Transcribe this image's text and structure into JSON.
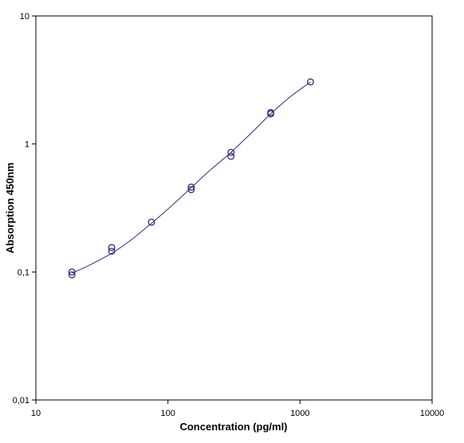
{
  "chart_data": {
    "type": "scatter",
    "xlabel": "Concentration (pg/ml)",
    "ylabel": "Absorption 450nm",
    "x_scale": "log",
    "y_scale": "log",
    "xlim": [
      10,
      10000
    ],
    "ylim": [
      0.01,
      10
    ],
    "grid": false,
    "x_ticks": [
      10,
      100,
      1000,
      10000
    ],
    "x_tick_labels": [
      "10",
      "100",
      "1000",
      "10000"
    ],
    "y_ticks": [
      0.01,
      0.1,
      1,
      10
    ],
    "y_tick_labels": [
      "0,01",
      "0,1",
      "1",
      "10"
    ],
    "series": [
      {
        "marker": "circle",
        "color": "#2b2f7a",
        "points": [
          {
            "x": 18.75,
            "y": 0.095
          },
          {
            "x": 18.75,
            "y": 0.1
          },
          {
            "x": 37.5,
            "y": 0.145
          },
          {
            "x": 37.5,
            "y": 0.155
          },
          {
            "x": 75,
            "y": 0.245
          },
          {
            "x": 150,
            "y": 0.44
          },
          {
            "x": 150,
            "y": 0.46
          },
          {
            "x": 300,
            "y": 0.8
          },
          {
            "x": 300,
            "y": 0.86
          },
          {
            "x": 600,
            "y": 1.72
          },
          {
            "x": 600,
            "y": 1.76
          },
          {
            "x": 1200,
            "y": 3.05
          }
        ]
      }
    ],
    "fit_curve": {
      "color": "#2b2f7a",
      "x": [
        18.75,
        25,
        37.5,
        50,
        75,
        100,
        150,
        200,
        300,
        450,
        600,
        850,
        1200
      ],
      "y": [
        0.098,
        0.112,
        0.14,
        0.171,
        0.24,
        0.31,
        0.455,
        0.6,
        0.86,
        1.28,
        1.72,
        2.35,
        3.05
      ]
    }
  }
}
